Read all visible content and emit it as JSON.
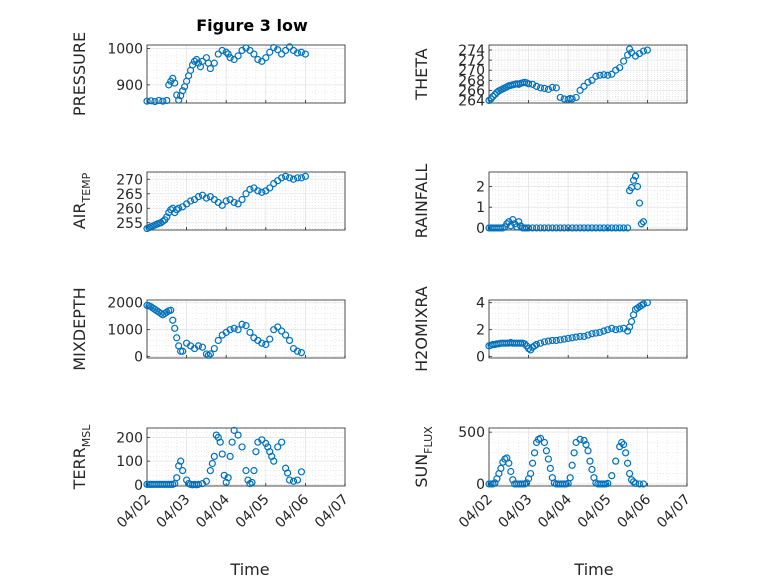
{
  "figure": {
    "title": "Figure 3 low",
    "marker_color": "#0072BD",
    "x_tick_labels": [
      "04/02",
      "04/03",
      "04/04",
      "04/05",
      "04/06",
      "04/07"
    ],
    "x_label": "Time"
  },
  "chart_data": [
    {
      "type": "scatter",
      "title": "Figure 3 low",
      "ylabel": "PRESSURE",
      "ylabel_sub": "",
      "xlim": [
        0,
        5
      ],
      "ylim": [
        850,
        1010
      ],
      "yticks": [
        900,
        1000
      ],
      "ytick_labels": [
        "900",
        "1000"
      ],
      "grid": true,
      "x": [
        0.0,
        0.1,
        0.2,
        0.3,
        0.4,
        0.5,
        0.55,
        0.6,
        0.65,
        0.7,
        0.75,
        0.8,
        0.85,
        0.9,
        0.95,
        1.0,
        1.05,
        1.1,
        1.15,
        1.2,
        1.25,
        1.3,
        1.35,
        1.4,
        1.5,
        1.55,
        1.6,
        1.7,
        1.8,
        1.9,
        2.0,
        2.05,
        2.1,
        2.2,
        2.3,
        2.4,
        2.5,
        2.6,
        2.7,
        2.8,
        2.9,
        3.0,
        3.1,
        3.2,
        3.3,
        3.4,
        3.5,
        3.6,
        3.7,
        3.8,
        3.9,
        4.0
      ],
      "y": [
        855,
        856,
        854,
        857,
        855,
        857,
        900,
        910,
        918,
        905,
        872,
        858,
        870,
        884,
        895,
        910,
        925,
        940,
        955,
        965,
        970,
        960,
        950,
        965,
        975,
        960,
        945,
        960,
        985,
        995,
        990,
        985,
        975,
        970,
        980,
        995,
        1002,
        995,
        985,
        970,
        965,
        975,
        990,
        1003,
        997,
        985,
        995,
        1005,
        995,
        988,
        990,
        985
      ]
    },
    {
      "type": "scatter",
      "ylabel": "THETA",
      "ylabel_sub": "",
      "xlim": [
        0,
        5
      ],
      "ylim": [
        263.5,
        275
      ],
      "yticks": [
        264,
        266,
        268,
        270,
        272,
        274
      ],
      "ytick_labels": [
        "264",
        "266",
        "268",
        "270",
        "272",
        "274"
      ],
      "grid": true,
      "x": [
        0.0,
        0.05,
        0.1,
        0.15,
        0.2,
        0.25,
        0.3,
        0.35,
        0.4,
        0.45,
        0.5,
        0.55,
        0.6,
        0.65,
        0.7,
        0.75,
        0.8,
        0.85,
        0.9,
        0.95,
        1.0,
        1.1,
        1.2,
        1.3,
        1.4,
        1.5,
        1.6,
        1.7,
        1.8,
        1.9,
        2.0,
        2.05,
        2.1,
        2.2,
        2.3,
        2.4,
        2.5,
        2.6,
        2.7,
        2.8,
        2.9,
        3.0,
        3.1,
        3.2,
        3.3,
        3.4,
        3.5,
        3.55,
        3.6,
        3.7,
        3.8,
        3.9,
        4.0
      ],
      "y": [
        264.0,
        264.3,
        264.8,
        265.2,
        265.6,
        265.9,
        266.1,
        266.3,
        266.5,
        266.7,
        266.9,
        267.0,
        267.1,
        267.2,
        267.3,
        267.2,
        267.4,
        267.5,
        267.6,
        267.5,
        267.3,
        267.2,
        266.8,
        266.5,
        266.4,
        266.2,
        266.6,
        266.5,
        264.6,
        264.3,
        264.2,
        264.4,
        264.3,
        264.6,
        266.0,
        266.8,
        267.6,
        268.0,
        268.8,
        269.0,
        269.1,
        269.0,
        269.2,
        270.0,
        270.5,
        271.8,
        273.0,
        274.2,
        273.5,
        272.8,
        273.3,
        273.8,
        274.0
      ]
    },
    {
      "type": "scatter",
      "ylabel": "AIR",
      "ylabel_sub": "TEMP",
      "xlim": [
        0,
        5
      ],
      "ylim": [
        252.5,
        272.5
      ],
      "yticks": [
        255,
        260,
        265,
        270
      ],
      "ytick_labels": [
        "255",
        "260",
        "265",
        "270"
      ],
      "grid": true,
      "x": [
        0.0,
        0.05,
        0.1,
        0.15,
        0.2,
        0.25,
        0.3,
        0.35,
        0.4,
        0.45,
        0.5,
        0.55,
        0.6,
        0.65,
        0.7,
        0.75,
        0.8,
        0.9,
        1.0,
        1.1,
        1.2,
        1.3,
        1.4,
        1.5,
        1.6,
        1.7,
        1.8,
        1.9,
        2.0,
        2.1,
        2.2,
        2.3,
        2.4,
        2.5,
        2.6,
        2.7,
        2.8,
        2.9,
        3.0,
        3.1,
        3.2,
        3.3,
        3.4,
        3.5,
        3.6,
        3.7,
        3.8,
        3.9,
        4.0
      ],
      "y": [
        253.0,
        253.3,
        253.6,
        253.9,
        254.2,
        254.5,
        254.8,
        255.0,
        255.5,
        256.0,
        257.0,
        258.5,
        259.5,
        260.0,
        258.5,
        259.5,
        260.0,
        260.5,
        261.5,
        262.5,
        263.0,
        264.0,
        264.5,
        263.5,
        264.0,
        263.0,
        262.0,
        261.0,
        262.5,
        263.0,
        262.0,
        261.5,
        263.0,
        265.0,
        266.5,
        267.0,
        266.0,
        265.5,
        266.0,
        267.0,
        268.5,
        269.5,
        270.5,
        271.0,
        270.5,
        270.0,
        270.5,
        270.5,
        271.0
      ]
    },
    {
      "type": "scatter",
      "ylabel": "RAINFALL",
      "ylabel_sub": "",
      "xlim": [
        0,
        5
      ],
      "ylim": [
        -0.1,
        2.7
      ],
      "yticks": [
        0,
        1,
        2
      ],
      "ytick_labels": [
        "0",
        "1",
        "2"
      ],
      "grid": true,
      "x": [
        0.0,
        0.05,
        0.1,
        0.15,
        0.2,
        0.25,
        0.3,
        0.35,
        0.4,
        0.45,
        0.5,
        0.55,
        0.6,
        0.65,
        0.7,
        0.75,
        0.8,
        0.85,
        0.9,
        0.95,
        1.0,
        1.1,
        1.2,
        1.3,
        1.4,
        1.5,
        1.6,
        1.7,
        1.8,
        1.9,
        2.0,
        2.1,
        2.2,
        2.3,
        2.4,
        2.5,
        2.6,
        2.7,
        2.8,
        2.9,
        3.0,
        3.1,
        3.2,
        3.3,
        3.4,
        3.5,
        3.55,
        3.6,
        3.65,
        3.7,
        3.75,
        3.8,
        3.85,
        3.9
      ],
      "y": [
        0,
        0,
        0,
        0,
        0,
        0,
        0,
        0,
        0.05,
        0.2,
        0.3,
        0.1,
        0.4,
        0.2,
        0.05,
        0.3,
        0.1,
        0,
        0,
        0,
        0,
        0,
        0,
        0,
        0,
        0,
        0,
        0,
        0,
        0,
        0,
        0,
        0,
        0,
        0,
        0,
        0,
        0,
        0,
        0,
        0,
        0,
        0,
        0,
        0,
        0,
        1.8,
        1.95,
        2.3,
        2.5,
        2.0,
        1.2,
        0.2,
        0.3
      ]
    },
    {
      "type": "scatter",
      "ylabel": "MIXDEPTH",
      "ylabel_sub": "",
      "xlim": [
        0,
        5
      ],
      "ylim": [
        -50,
        2100
      ],
      "yticks": [
        0,
        1000,
        2000
      ],
      "ytick_labels": [
        "0",
        "1000",
        "2000"
      ],
      "grid": true,
      "x": [
        0.0,
        0.05,
        0.1,
        0.15,
        0.2,
        0.25,
        0.3,
        0.35,
        0.4,
        0.45,
        0.5,
        0.55,
        0.6,
        0.65,
        0.7,
        0.75,
        0.8,
        0.85,
        0.9,
        1.0,
        1.1,
        1.2,
        1.3,
        1.4,
        1.5,
        1.55,
        1.6,
        1.7,
        1.8,
        1.9,
        2.0,
        2.1,
        2.2,
        2.3,
        2.4,
        2.5,
        2.6,
        2.7,
        2.8,
        2.9,
        3.0,
        3.1,
        3.2,
        3.3,
        3.4,
        3.5,
        3.6,
        3.7,
        3.8,
        3.9
      ],
      "y": [
        1900,
        1880,
        1850,
        1800,
        1750,
        1700,
        1650,
        1600,
        1550,
        1600,
        1650,
        1700,
        1720,
        1350,
        1050,
        700,
        400,
        200,
        200,
        500,
        400,
        300,
        400,
        350,
        100,
        50,
        100,
        300,
        600,
        800,
        900,
        1000,
        1050,
        1000,
        1200,
        1150,
        900,
        700,
        600,
        500,
        450,
        650,
        1000,
        1100,
        950,
        800,
        600,
        300,
        200,
        150
      ]
    },
    {
      "type": "scatter",
      "ylabel": "H2OMIXRA",
      "ylabel_sub": "",
      "xlim": [
        0,
        5
      ],
      "ylim": [
        -0.1,
        4.2
      ],
      "yticks": [
        0,
        2,
        4
      ],
      "ytick_labels": [
        "0",
        "2",
        "4"
      ],
      "grid": true,
      "x": [
        0.0,
        0.05,
        0.1,
        0.15,
        0.2,
        0.25,
        0.3,
        0.35,
        0.4,
        0.45,
        0.5,
        0.55,
        0.6,
        0.65,
        0.7,
        0.75,
        0.8,
        0.85,
        0.9,
        0.95,
        1.0,
        1.05,
        1.1,
        1.15,
        1.2,
        1.3,
        1.4,
        1.5,
        1.6,
        1.7,
        1.8,
        1.9,
        2.0,
        2.1,
        2.2,
        2.3,
        2.4,
        2.5,
        2.6,
        2.7,
        2.8,
        2.9,
        3.0,
        3.1,
        3.2,
        3.3,
        3.4,
        3.5,
        3.55,
        3.6,
        3.65,
        3.7,
        3.75,
        3.8,
        3.85,
        3.9,
        4.0
      ],
      "y": [
        0.8,
        0.85,
        0.9,
        0.9,
        0.95,
        0.95,
        1.0,
        1.0,
        1.0,
        1.0,
        1.0,
        1.05,
        1.0,
        1.0,
        1.0,
        1.0,
        1.0,
        1.0,
        0.95,
        0.8,
        0.6,
        0.5,
        0.7,
        0.8,
        0.9,
        1.0,
        1.1,
        1.15,
        1.2,
        1.2,
        1.25,
        1.3,
        1.35,
        1.4,
        1.45,
        1.5,
        1.5,
        1.6,
        1.7,
        1.75,
        1.8,
        1.9,
        2.0,
        2.1,
        2.0,
        2.05,
        2.1,
        1.9,
        2.2,
        2.6,
        3.1,
        3.5,
        3.6,
        3.7,
        3.8,
        3.9,
        4.0
      ]
    },
    {
      "type": "scatter",
      "ylabel": "TERR",
      "ylabel_sub": "MSL",
      "xlim": [
        0,
        5
      ],
      "ylim": [
        -5,
        240
      ],
      "yticks": [
        0,
        100,
        200
      ],
      "ytick_labels": [
        "0",
        "100",
        "200"
      ],
      "grid": true,
      "x": [
        0.0,
        0.05,
        0.1,
        0.15,
        0.2,
        0.25,
        0.3,
        0.35,
        0.4,
        0.45,
        0.5,
        0.55,
        0.6,
        0.65,
        0.7,
        0.75,
        0.8,
        0.85,
        0.9,
        1.0,
        1.05,
        1.1,
        1.15,
        1.2,
        1.25,
        1.3,
        1.4,
        1.5,
        1.6,
        1.65,
        1.7,
        1.75,
        1.8,
        1.85,
        1.9,
        1.95,
        2.0,
        2.05,
        2.1,
        2.15,
        2.2,
        2.3,
        2.4,
        2.5,
        2.55,
        2.6,
        2.65,
        2.7,
        2.75,
        2.8,
        2.9,
        3.0,
        3.05,
        3.1,
        3.15,
        3.2,
        3.3,
        3.4,
        3.5,
        3.55,
        3.6,
        3.7,
        3.8,
        3.9
      ],
      "y": [
        2,
        2,
        2,
        2,
        2,
        2,
        2,
        2,
        2,
        2,
        2,
        2,
        2,
        2,
        5,
        30,
        80,
        100,
        60,
        20,
        5,
        2,
        0,
        2,
        0,
        2,
        5,
        15,
        60,
        90,
        120,
        210,
        200,
        180,
        130,
        40,
        10,
        30,
        120,
        180,
        230,
        210,
        160,
        60,
        20,
        5,
        10,
        60,
        140,
        180,
        190,
        175,
        160,
        140,
        120,
        100,
        160,
        180,
        70,
        50,
        20,
        15,
        20,
        55
      ]
    },
    {
      "type": "scatter",
      "ylabel": "SUN",
      "ylabel_sub": "FLUX",
      "xlim": [
        0,
        5
      ],
      "ylim": [
        -20,
        540
      ],
      "yticks": [
        0,
        500
      ],
      "ytick_labels": [
        "0",
        "500"
      ],
      "grid": true,
      "x": [
        0.0,
        0.05,
        0.1,
        0.15,
        0.2,
        0.25,
        0.3,
        0.35,
        0.4,
        0.45,
        0.5,
        0.55,
        0.6,
        0.65,
        0.7,
        0.75,
        0.8,
        0.85,
        0.9,
        0.95,
        1.0,
        1.05,
        1.1,
        1.15,
        1.2,
        1.25,
        1.3,
        1.4,
        1.45,
        1.5,
        1.55,
        1.6,
        1.65,
        1.7,
        1.75,
        1.8,
        1.85,
        1.9,
        1.95,
        2.0,
        2.05,
        2.1,
        2.15,
        2.2,
        2.3,
        2.4,
        2.45,
        2.5,
        2.55,
        2.6,
        2.65,
        2.7,
        2.75,
        2.8,
        2.85,
        2.9,
        2.95,
        3.0,
        3.1,
        3.2,
        3.3,
        3.35,
        3.4,
        3.45,
        3.5,
        3.55,
        3.6,
        3.65,
        3.7,
        3.8,
        3.9
      ],
      "y": [
        0,
        0,
        0,
        10,
        50,
        100,
        150,
        210,
        240,
        250,
        200,
        120,
        40,
        0,
        0,
        0,
        0,
        0,
        0,
        10,
        50,
        100,
        200,
        300,
        400,
        430,
        440,
        400,
        320,
        240,
        150,
        60,
        10,
        0,
        0,
        0,
        0,
        0,
        0,
        5,
        60,
        180,
        300,
        400,
        430,
        420,
        380,
        320,
        220,
        140,
        60,
        10,
        0,
        0,
        0,
        0,
        0,
        5,
        80,
        220,
        360,
        400,
        380,
        300,
        200,
        100,
        40,
        20,
        5,
        0,
        0
      ]
    }
  ]
}
